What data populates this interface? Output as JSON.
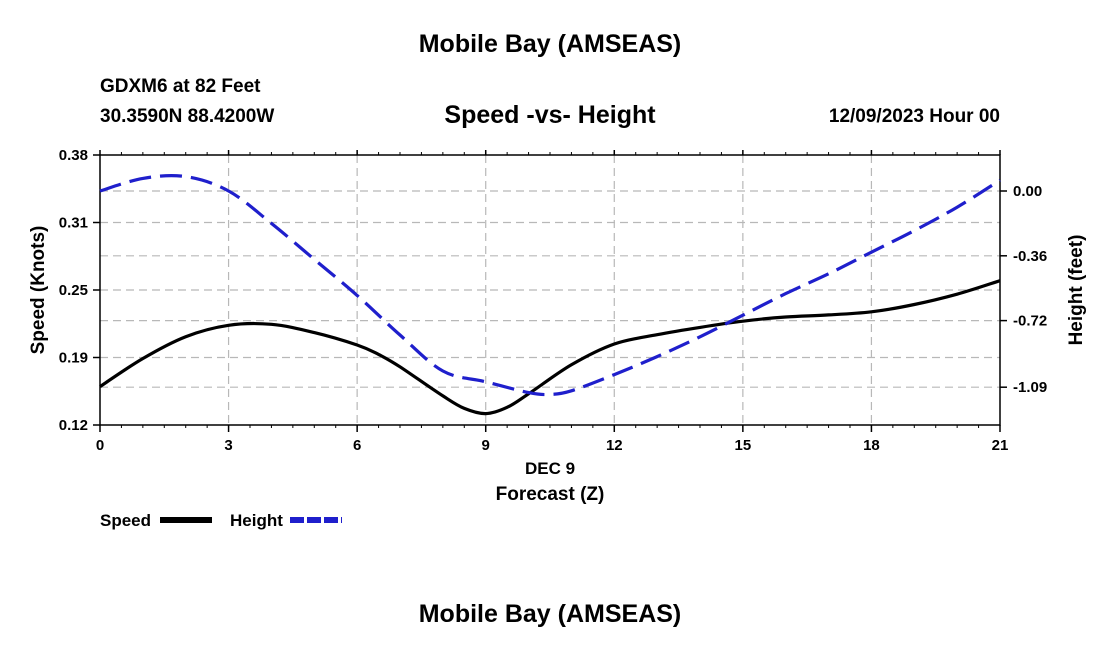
{
  "header": {
    "title": "Mobile Bay (AMSEAS)",
    "station": "GDXM6 at 82 Feet",
    "coords": "30.3590N  88.4200W",
    "subtitle": "Speed -vs- Height",
    "datetime": "12/09/2023 Hour 00"
  },
  "footer": {
    "title": "Mobile Bay (AMSEAS)"
  },
  "chart_data": {
    "type": "line",
    "xlabel": "Forecast (Z)",
    "xlabel_day": "DEC 9",
    "ylabel_left": "Speed (Knots)",
    "ylabel_right": "Height (feet)",
    "xlim": [
      0,
      21
    ],
    "x_ticks": [
      0,
      3,
      6,
      9,
      12,
      15,
      18,
      21
    ],
    "ylim_left": [
      0.12,
      0.38
    ],
    "y_ticks_left": [
      "0.12",
      "0.19",
      "0.25",
      "0.31",
      "0.38"
    ],
    "y_tick_values_left": [
      0.12,
      0.185,
      0.25,
      0.315,
      0.38
    ],
    "ylim_right": [
      -1.3,
      0.2
    ],
    "y_ticks_right": [
      "0.00",
      "-0.36",
      "-0.72",
      "-1.09"
    ],
    "y_tick_values_right": [
      0.0,
      -0.36,
      -0.72,
      -1.09
    ],
    "grid": true,
    "legend_position": "bottom-left",
    "series": [
      {
        "name": "Speed",
        "axis": "left",
        "color": "#000000",
        "style": "solid",
        "x": [
          0,
          1,
          2,
          3,
          4,
          5,
          6,
          6.5,
          7,
          8,
          8.5,
          9,
          9.5,
          10,
          11,
          12,
          13,
          14,
          15,
          16,
          17,
          18,
          19,
          20,
          21
        ],
        "y": [
          0.157,
          0.184,
          0.205,
          0.216,
          0.217,
          0.209,
          0.197,
          0.188,
          0.176,
          0.148,
          0.136,
          0.131,
          0.137,
          0.15,
          0.178,
          0.198,
          0.207,
          0.214,
          0.22,
          0.224,
          0.226,
          0.229,
          0.236,
          0.246,
          0.259
        ]
      },
      {
        "name": "Height",
        "axis": "right",
        "color": "#1f1fcc",
        "style": "dashed",
        "x": [
          0,
          1,
          2,
          3,
          4,
          5,
          6,
          7,
          8,
          9,
          10,
          10.5,
          11,
          12,
          13,
          14,
          15,
          16,
          17,
          18,
          19,
          20,
          21
        ],
        "y": [
          0.0,
          0.07,
          0.08,
          0.0,
          -0.18,
          -0.38,
          -0.58,
          -0.8,
          -1.0,
          -1.06,
          -1.12,
          -1.13,
          -1.11,
          -1.02,
          -0.92,
          -0.81,
          -0.69,
          -0.57,
          -0.46,
          -0.34,
          -0.22,
          -0.09,
          0.06
        ]
      }
    ]
  }
}
